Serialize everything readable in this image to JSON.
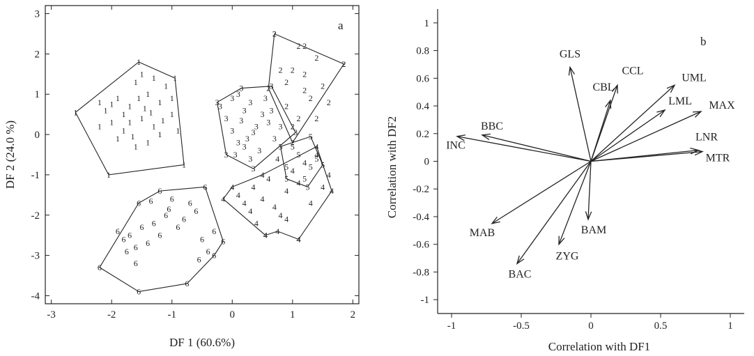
{
  "chart_data": [
    {
      "type": "scatter",
      "panel": "a",
      "xlabel": "DF 1 (60.6%)",
      "ylabel": "DF 2 (24.0 %)",
      "xlim": [
        -3.1,
        2.1
      ],
      "ylim": [
        -4.2,
        3.2
      ],
      "xticks": [
        -3,
        -2,
        -1,
        0,
        1,
        2
      ],
      "yticks": [
        -4,
        -3,
        -2,
        -1,
        0,
        1,
        2,
        3
      ],
      "groups": [
        {
          "label": "1",
          "hull": [
            [
              -2.6,
              0.55
            ],
            [
              -1.55,
              1.8
            ],
            [
              -0.95,
              1.4
            ],
            [
              -0.8,
              -0.75
            ],
            [
              -2.05,
              -1.0
            ],
            [
              -2.6,
              0.55
            ]
          ],
          "points": [
            [
              -2.2,
              0.8
            ],
            [
              -2.1,
              0.6
            ],
            [
              -2.0,
              0.3
            ],
            [
              -1.9,
              0.9
            ],
            [
              -1.8,
              0.1
            ],
            [
              -1.7,
              0.7
            ],
            [
              -1.6,
              1.3
            ],
            [
              -1.5,
              0.4
            ],
            [
              -1.4,
              1.0
            ],
            [
              -1.3,
              0.2
            ],
            [
              -1.2,
              0.8
            ],
            [
              -1.1,
              1.2
            ],
            [
              -1.0,
              0.5
            ],
            [
              -1.9,
              -0.1
            ],
            [
              -1.6,
              -0.3
            ],
            [
              -1.4,
              -0.2
            ],
            [
              -1.2,
              0.0
            ],
            [
              -2.2,
              0.2
            ],
            [
              -1.8,
              0.5
            ],
            [
              -1.5,
              1.5
            ],
            [
              -1.3,
              1.4
            ],
            [
              -1.0,
              0.9
            ],
            [
              -0.9,
              0.1
            ],
            [
              -1.7,
              0.3
            ],
            [
              -2.0,
              0.75
            ],
            [
              -1.45,
              0.65
            ],
            [
              -1.15,
              0.35
            ],
            [
              -1.65,
              -0.05
            ],
            [
              -1.35,
              0.55
            ],
            [
              -1.55,
              0.9
            ]
          ]
        },
        {
          "label": "2",
          "hull": [
            [
              0.6,
              1.15
            ],
            [
              0.7,
              2.5
            ],
            [
              1.85,
              1.75
            ],
            [
              1.0,
              -0.2
            ],
            [
              0.6,
              1.15
            ]
          ],
          "points": [
            [
              0.7,
              2.5
            ],
            [
              1.1,
              2.2
            ],
            [
              1.2,
              2.2
            ],
            [
              1.4,
              1.9
            ],
            [
              0.8,
              1.6
            ],
            [
              1.0,
              1.6
            ],
            [
              1.2,
              1.5
            ],
            [
              1.5,
              1.2
            ],
            [
              1.6,
              0.8
            ],
            [
              1.3,
              0.9
            ],
            [
              1.1,
              0.4
            ],
            [
              0.9,
              0.7
            ],
            [
              1.85,
              1.75
            ],
            [
              1.4,
              0.4
            ],
            [
              1.0,
              0.2
            ],
            [
              1.2,
              1.1
            ],
            [
              0.9,
              1.3
            ]
          ]
        },
        {
          "label": "3",
          "hull": [
            [
              -0.25,
              0.8
            ],
            [
              0.15,
              1.15
            ],
            [
              0.65,
              1.2
            ],
            [
              1.05,
              0.05
            ],
            [
              0.35,
              -0.85
            ],
            [
              -0.1,
              -0.5
            ],
            [
              -0.25,
              0.8
            ]
          ],
          "points": [
            [
              -0.2,
              0.7
            ],
            [
              0.0,
              0.9
            ],
            [
              0.1,
              1.0
            ],
            [
              0.2,
              0.6
            ],
            [
              0.3,
              0.8
            ],
            [
              0.4,
              0.2
            ],
            [
              0.5,
              0.5
            ],
            [
              0.6,
              0.3
            ],
            [
              0.0,
              0.1
            ],
            [
              0.1,
              -0.2
            ],
            [
              0.2,
              -0.3
            ],
            [
              0.3,
              -0.6
            ],
            [
              0.45,
              -0.4
            ],
            [
              0.7,
              -0.1
            ],
            [
              -0.1,
              0.4
            ],
            [
              0.35,
              0.05
            ],
            [
              0.55,
              0.9
            ],
            [
              0.25,
              -0.1
            ],
            [
              0.05,
              -0.5
            ],
            [
              0.65,
              0.6
            ],
            [
              0.8,
              0.2
            ],
            [
              0.15,
              0.35
            ]
          ]
        },
        {
          "label": "4",
          "hull": [
            [
              -0.15,
              -1.6
            ],
            [
              0.0,
              -1.3
            ],
            [
              0.5,
              -1.0
            ],
            [
              1.4,
              -0.3
            ],
            [
              1.65,
              -1.4
            ],
            [
              1.1,
              -2.6
            ],
            [
              0.75,
              -2.4
            ],
            [
              0.55,
              -2.5
            ],
            [
              -0.15,
              -1.6
            ]
          ],
          "points": [
            [
              0.1,
              -1.5
            ],
            [
              0.2,
              -1.7
            ],
            [
              0.3,
              -1.9
            ],
            [
              0.4,
              -2.2
            ],
            [
              0.5,
              -1.6
            ],
            [
              0.6,
              -1.1
            ],
            [
              0.7,
              -1.8
            ],
            [
              0.8,
              -2.0
            ],
            [
              0.9,
              -1.4
            ],
            [
              1.0,
              -0.9
            ],
            [
              1.1,
              -1.2
            ],
            [
              1.2,
              -0.7
            ],
            [
              1.3,
              -1.7
            ],
            [
              1.4,
              -0.5
            ],
            [
              1.5,
              -1.3
            ],
            [
              1.6,
              -1.0
            ],
            [
              0.55,
              -2.5
            ],
            [
              1.1,
              -2.6
            ],
            [
              0.9,
              -2.1
            ],
            [
              0.35,
              -1.3
            ],
            [
              0.75,
              -0.6
            ]
          ]
        },
        {
          "label": "5",
          "hull": [
            [
              0.8,
              -0.3
            ],
            [
              1.3,
              -0.05
            ],
            [
              1.5,
              -0.75
            ],
            [
              1.25,
              -1.3
            ],
            [
              0.9,
              -1.1
            ],
            [
              0.8,
              -0.3
            ]
          ],
          "points": [
            [
              1.0,
              -0.3
            ],
            [
              1.1,
              -0.5
            ],
            [
              1.3,
              -0.8
            ],
            [
              1.2,
              -1.1
            ],
            [
              1.4,
              -0.6
            ],
            [
              0.9,
              -0.8
            ]
          ]
        },
        {
          "label": "6",
          "hull": [
            [
              -2.2,
              -3.3
            ],
            [
              -1.55,
              -3.9
            ],
            [
              -0.75,
              -3.7
            ],
            [
              -0.3,
              -3.0
            ],
            [
              -0.15,
              -2.65
            ],
            [
              -0.45,
              -1.3
            ],
            [
              -1.2,
              -1.4
            ],
            [
              -1.55,
              -1.7
            ],
            [
              -2.2,
              -3.3
            ]
          ],
          "points": [
            [
              -1.9,
              -2.4
            ],
            [
              -1.8,
              -2.6
            ],
            [
              -1.7,
              -2.5
            ],
            [
              -1.6,
              -2.8
            ],
            [
              -1.5,
              -2.3
            ],
            [
              -1.4,
              -2.7
            ],
            [
              -1.3,
              -2.2
            ],
            [
              -1.2,
              -2.5
            ],
            [
              -1.1,
              -2.0
            ],
            [
              -1.0,
              -1.6
            ],
            [
              -0.9,
              -2.3
            ],
            [
              -0.8,
              -2.1
            ],
            [
              -0.7,
              -1.7
            ],
            [
              -0.6,
              -1.9
            ],
            [
              -0.5,
              -2.6
            ],
            [
              -0.4,
              -2.9
            ],
            [
              -0.3,
              -2.4
            ],
            [
              -1.6,
              -3.2
            ],
            [
              -1.35,
              -1.65
            ],
            [
              -1.05,
              -1.85
            ],
            [
              -1.75,
              -2.9
            ],
            [
              -0.55,
              -3.1
            ]
          ]
        }
      ],
      "annotations": [
        "a"
      ]
    },
    {
      "type": "vector",
      "panel": "b",
      "xlabel": "Correlation with DF1",
      "ylabel": "Correlation with DF2",
      "xlim": [
        -1.1,
        1.1
      ],
      "ylim": [
        -1.1,
        1.1
      ],
      "xticks": [
        -1,
        -0.5,
        0,
        0.5,
        1
      ],
      "yticks": [
        -1,
        -0.8,
        -0.6,
        -0.4,
        -0.2,
        0,
        0.2,
        0.4,
        0.6,
        0.8,
        1
      ],
      "vectors": [
        {
          "name": "GLS",
          "x": -0.15,
          "y": 0.68
        },
        {
          "name": "CCL",
          "x": 0.19,
          "y": 0.55
        },
        {
          "name": "CBL",
          "x": 0.14,
          "y": 0.44
        },
        {
          "name": "UML",
          "x": 0.6,
          "y": 0.55
        },
        {
          "name": "LML",
          "x": 0.53,
          "y": 0.37
        },
        {
          "name": "MAX",
          "x": 0.79,
          "y": 0.36
        },
        {
          "name": "LNR",
          "x": 0.77,
          "y": 0.08
        },
        {
          "name": "MTR",
          "x": 0.8,
          "y": 0.07
        },
        {
          "name": "BBC",
          "x": -0.78,
          "y": 0.19
        },
        {
          "name": "INC",
          "x": -0.96,
          "y": 0.18
        },
        {
          "name": "MAB",
          "x": -0.71,
          "y": -0.45
        },
        {
          "name": "BAC",
          "x": -0.53,
          "y": -0.74
        },
        {
          "name": "ZYG",
          "x": -0.23,
          "y": -0.6
        },
        {
          "name": "BAM",
          "x": -0.02,
          "y": -0.42
        }
      ],
      "annotations": [
        "b"
      ]
    }
  ]
}
